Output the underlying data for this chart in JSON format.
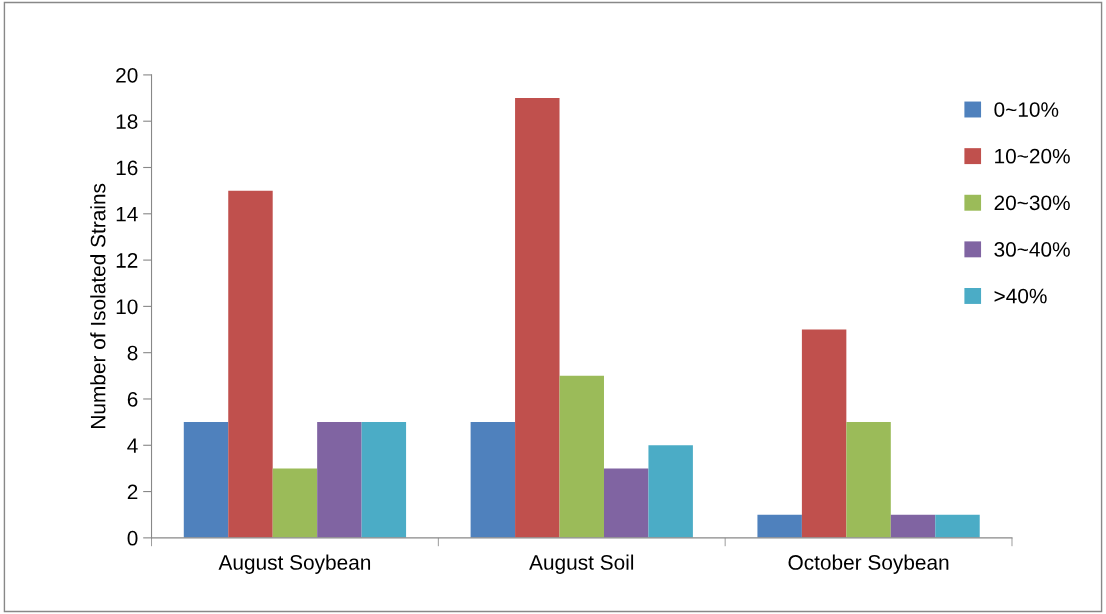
{
  "chart_data": {
    "type": "bar",
    "ylabel": "Number of Isolated Strains",
    "categories": [
      "August Soybean",
      "August Soil",
      "October Soybean"
    ],
    "series": [
      {
        "name": "0~10%",
        "color": "#4f81bd",
        "values": [
          5,
          5,
          1
        ]
      },
      {
        "name": "10~20%",
        "color": "#c0504d",
        "values": [
          15,
          19,
          9
        ]
      },
      {
        "name": "20~30%",
        "color": "#9bbb59",
        "values": [
          3,
          7,
          5
        ]
      },
      {
        "name": "30~40%",
        "color": "#8064a2",
        "values": [
          5,
          3,
          1
        ]
      },
      {
        "name": ">40%",
        "color": "#4bacc6",
        "values": [
          5,
          4,
          1
        ]
      }
    ],
    "ylim": [
      0,
      20
    ],
    "yticks": [
      0,
      2,
      4,
      6,
      8,
      10,
      12,
      14,
      16,
      18,
      20
    ],
    "grid": false,
    "legend": "right"
  }
}
